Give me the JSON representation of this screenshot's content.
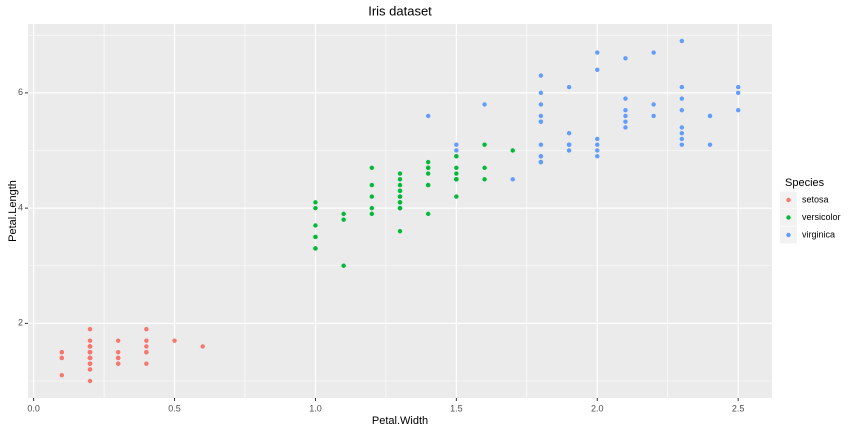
{
  "chart_data": {
    "type": "scatter",
    "title": "Iris dataset",
    "xlabel": "Petal.Width",
    "ylabel": "Petal.Length",
    "xlim": [
      -0.02,
      2.62
    ],
    "ylim": [
      0.705,
      7.195
    ],
    "xticks": [
      {
        "value": 0,
        "label": "0.0"
      },
      0.5,
      {
        "value": 1,
        "label": "1.0"
      },
      1.5,
      {
        "value": 2,
        "label": "2.0"
      },
      2.5
    ],
    "yticks": [
      2,
      4,
      6
    ],
    "grid": true,
    "legend_title": "Species",
    "legend_position": "right",
    "series": [
      {
        "name": "setosa",
        "color": "#F8766D",
        "x": [
          0.2,
          0.2,
          0.2,
          0.2,
          0.2,
          0.4,
          0.3,
          0.2,
          0.2,
          0.1,
          0.2,
          0.2,
          0.1,
          0.1,
          0.2,
          0.4,
          0.4,
          0.3,
          0.3,
          0.3,
          0.2,
          0.4,
          0.2,
          0.5,
          0.2,
          0.2,
          0.4,
          0.2,
          0.2,
          0.2,
          0.2,
          0.4,
          0.1,
          0.2,
          0.2,
          0.2,
          0.2,
          0.1,
          0.2,
          0.2,
          0.3,
          0.3,
          0.2,
          0.6,
          0.4,
          0.3,
          0.2,
          0.2,
          0.2,
          0.2
        ],
        "values": [
          1.4,
          1.4,
          1.3,
          1.5,
          1.4,
          1.7,
          1.4,
          1.5,
          1.4,
          1.5,
          1.5,
          1.6,
          1.4,
          1.1,
          1.2,
          1.5,
          1.3,
          1.4,
          1.7,
          1.5,
          1.7,
          1.5,
          1.0,
          1.7,
          1.9,
          1.6,
          1.6,
          1.5,
          1.4,
          1.6,
          1.6,
          1.5,
          1.5,
          1.4,
          1.5,
          1.2,
          1.3,
          1.4,
          1.3,
          1.5,
          1.3,
          1.3,
          1.3,
          1.6,
          1.9,
          1.4,
          1.6,
          1.4,
          1.5,
          1.4
        ]
      },
      {
        "name": "versicolor",
        "color": "#00BA38",
        "x": [
          1.4,
          1.5,
          1.5,
          1.3,
          1.5,
          1.3,
          1.6,
          1.0,
          1.3,
          1.4,
          1.0,
          1.5,
          1.0,
          1.4,
          1.3,
          1.4,
          1.5,
          1.0,
          1.5,
          1.1,
          1.8,
          1.3,
          1.5,
          1.2,
          1.3,
          1.4,
          1.4,
          1.7,
          1.5,
          1.0,
          1.1,
          1.0,
          1.2,
          1.6,
          1.5,
          1.6,
          1.5,
          1.3,
          1.3,
          1.3,
          1.2,
          1.4,
          1.2,
          1.0,
          1.3,
          1.2,
          1.3,
          1.3,
          1.1,
          1.3
        ],
        "values": [
          4.7,
          4.5,
          4.9,
          4.0,
          4.6,
          4.5,
          4.7,
          3.3,
          4.6,
          3.9,
          3.5,
          4.2,
          4.0,
          4.7,
          3.6,
          4.4,
          4.5,
          4.1,
          4.5,
          3.9,
          4.8,
          4.0,
          4.9,
          4.7,
          4.3,
          4.4,
          4.8,
          5.0,
          4.5,
          3.5,
          3.8,
          3.7,
          3.9,
          5.1,
          4.5,
          4.5,
          4.7,
          4.4,
          4.1,
          4.0,
          4.4,
          4.6,
          4.0,
          3.3,
          4.2,
          4.2,
          4.2,
          4.3,
          3.0,
          4.1
        ]
      },
      {
        "name": "virginica",
        "color": "#619CFF",
        "x": [
          2.5,
          1.9,
          2.1,
          1.8,
          2.2,
          2.1,
          1.7,
          1.8,
          1.8,
          2.5,
          2.0,
          1.9,
          2.1,
          2.0,
          2.4,
          2.3,
          1.8,
          2.2,
          2.3,
          1.5,
          2.3,
          2.0,
          2.0,
          1.8,
          2.1,
          1.8,
          1.8,
          1.8,
          2.1,
          1.6,
          1.9,
          2.0,
          2.2,
          1.5,
          1.4,
          2.3,
          2.4,
          1.8,
          1.8,
          2.1,
          2.4,
          2.3,
          1.9,
          2.3,
          2.5,
          2.3,
          1.9,
          2.0,
          2.3,
          1.8
        ],
        "values": [
          6.0,
          5.1,
          5.9,
          5.6,
          5.8,
          6.6,
          4.5,
          6.3,
          5.8,
          6.1,
          5.1,
          5.3,
          5.5,
          5.0,
          5.1,
          5.3,
          5.5,
          6.7,
          6.9,
          5.0,
          5.7,
          4.9,
          6.7,
          4.9,
          5.7,
          6.0,
          4.8,
          4.9,
          5.6,
          5.8,
          6.1,
          6.4,
          5.6,
          5.1,
          5.6,
          6.1,
          5.6,
          5.5,
          4.8,
          5.4,
          5.6,
          5.1,
          5.1,
          5.9,
          5.7,
          5.2,
          5.0,
          5.2,
          5.4,
          5.1
        ]
      }
    ]
  }
}
